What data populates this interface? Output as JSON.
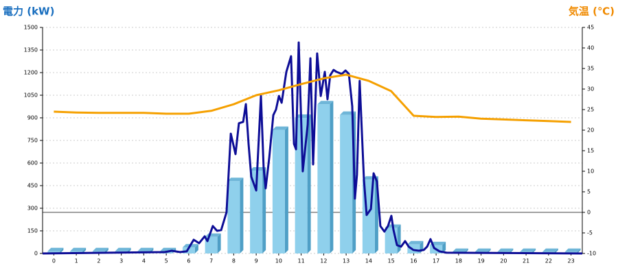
{
  "chart_data": {
    "type": "bar",
    "y_label": "電力 (kW)",
    "y2_label": "気温 (℃)",
    "categories": [
      "0",
      "1",
      "2",
      "3",
      "4",
      "5",
      "6",
      "7",
      "8",
      "9",
      "10",
      "11",
      "12",
      "13",
      "14",
      "15",
      "16",
      "17",
      "18",
      "19",
      "20",
      "21",
      "22",
      "23"
    ],
    "xlim": [
      -0.5,
      23.5
    ],
    "ylim": [
      0,
      1500
    ],
    "yticks": [
      0,
      150,
      300,
      450,
      600,
      750,
      900,
      1050,
      1200,
      1350,
      1500
    ],
    "y2lim": [
      -10,
      45
    ],
    "y2ticks": [
      -10,
      -5,
      0,
      5,
      10,
      15,
      20,
      25,
      30,
      35,
      40,
      45
    ],
    "grid": true,
    "series": [
      {
        "type": "bar",
        "color": "#8fd0ec",
        "values": [
          15,
          15,
          15,
          15,
          15,
          15,
          40,
          110,
          480,
          550,
          820,
          900,
          990,
          920,
          490,
          170,
          60,
          55,
          10,
          10,
          10,
          10,
          10,
          10
        ]
      },
      {
        "type": "line",
        "color": "#0d0d96",
        "x": [
          -0.5,
          4.94,
          5.24,
          5.61,
          5.91,
          6.22,
          6.46,
          6.71,
          6.83,
          7.07,
          7.26,
          7.44,
          7.68,
          7.87,
          8.08,
          8.23,
          8.42,
          8.54,
          8.66,
          8.78,
          9.0,
          9.21,
          9.33,
          9.42,
          9.58,
          9.76,
          9.88,
          10.01,
          10.13,
          10.34,
          10.55,
          10.68,
          10.77,
          10.89,
          11.07,
          11.29,
          11.41,
          11.53,
          11.71,
          11.87,
          12.05,
          12.17,
          12.29,
          12.44,
          12.57,
          12.81,
          12.97,
          13.12,
          13.27,
          13.39,
          13.48,
          13.6,
          13.79,
          13.91,
          14.1,
          14.22,
          14.37,
          14.52,
          14.7,
          14.86,
          15.01,
          15.1,
          15.26,
          15.44,
          15.62,
          15.78,
          15.99,
          16.23,
          16.45,
          16.6,
          16.75,
          16.91,
          17.15,
          17.46,
          23.5
        ],
        "values": [
          0,
          9,
          18,
          9,
          14,
          91,
          68,
          114,
          82,
          182,
          150,
          155,
          273,
          795,
          659,
          864,
          873,
          991,
          727,
          509,
          418,
          1045,
          568,
          432,
          636,
          918,
          955,
          1045,
          1000,
          1205,
          1309,
          727,
          691,
          1400,
          545,
          855,
          1295,
          591,
          1327,
          1045,
          1205,
          1023,
          1182,
          1218,
          1205,
          1191,
          1214,
          1191,
          977,
          364,
          523,
          1145,
          491,
          255,
          295,
          532,
          477,
          182,
          145,
          182,
          250,
          159,
          55,
          45,
          82,
          45,
          23,
          18,
          23,
          45,
          95,
          36,
          14,
          5,
          0
        ]
      },
      {
        "type": "line",
        "axis": "y2",
        "color": "#f5a000",
        "values": [
          24.5,
          24.3,
          24.2,
          24.2,
          24.2,
          24,
          24,
          24.7,
          26.3,
          28.5,
          29.7,
          31.2,
          32.6,
          33.5,
          32,
          29.5,
          23.5,
          23.2,
          23.3,
          22.8,
          22.6,
          22.4,
          22.2,
          22
        ]
      }
    ]
  }
}
